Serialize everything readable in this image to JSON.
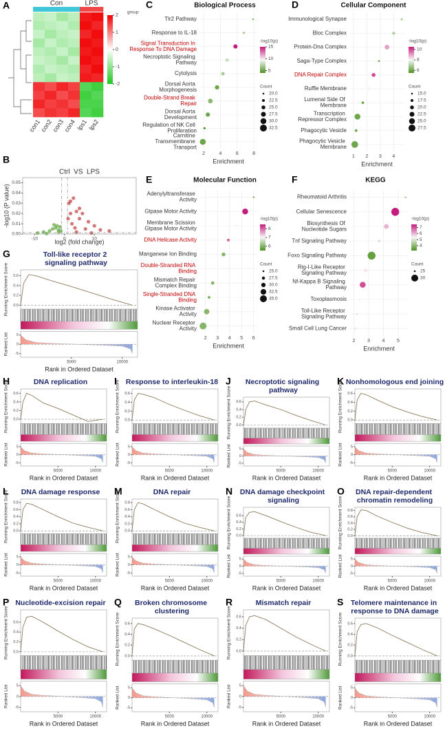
{
  "chart_data": [
    {
      "type": "heatmap",
      "panel": "A",
      "groups": [
        "Con",
        "LPS"
      ],
      "group_colors": [
        "#40c8d8",
        "#f04848"
      ],
      "columns": [
        "con1",
        "con2",
        "con3",
        "con4",
        "lps1",
        "lps2"
      ],
      "column_groups": [
        0,
        0,
        0,
        0,
        1,
        1
      ],
      "legend_title": "group",
      "clim": [
        -2,
        2
      ],
      "colorbar_ticks": [
        2,
        1,
        0,
        -1,
        -2
      ],
      "colors": [
        "#1ec81e",
        "#ffffff",
        "#f00000"
      ],
      "values": [
        [
          -0.6,
          -0.5,
          -0.8,
          -0.6,
          1.8,
          1.9
        ],
        [
          -0.7,
          -0.6,
          -0.5,
          -0.7,
          1.9,
          1.7
        ],
        [
          -0.5,
          -0.8,
          -0.6,
          -0.5,
          1.7,
          1.9
        ],
        [
          -0.8,
          -0.5,
          -0.7,
          -0.6,
          1.9,
          1.8
        ],
        [
          -0.6,
          -0.7,
          -0.5,
          -0.8,
          1.8,
          1.9
        ],
        [
          -0.5,
          -0.6,
          -0.8,
          -0.5,
          1.9,
          1.8
        ],
        [
          -0.7,
          -0.5,
          -0.6,
          -0.7,
          1.7,
          1.9
        ],
        [
          -0.6,
          -0.8,
          -0.5,
          -0.6,
          1.8,
          1.7
        ],
        [
          1.6,
          1.4,
          1.7,
          1.5,
          -1.5,
          -1.7
        ],
        [
          1.5,
          1.7,
          1.4,
          1.6,
          -1.7,
          -1.5
        ],
        [
          1.7,
          1.5,
          1.6,
          1.4,
          -1.6,
          -1.6
        ],
        [
          1.4,
          1.6,
          1.5,
          1.7,
          -1.5,
          -1.7
        ]
      ]
    },
    {
      "type": "scatter",
      "panel": "B",
      "title": "Ctrl  VS  LPS",
      "xlabel": "log2 (fold change)",
      "ylabel": "-log10 (P value)",
      "xlim": [
        -14,
        24
      ],
      "ylim": [
        0,
        0.055
      ],
      "xticks": [
        -10,
        0,
        10
      ],
      "yticks": [
        {
          "value": 0,
          "label": "0.00"
        },
        0.01,
        0.02,
        0.03,
        0.04,
        0.05
      ],
      "threshold_x": [
        -1,
        1
      ],
      "threshold_y": 0.0013,
      "series": [
        {
          "color": "#6aaa48",
          "x": [
            -9,
            -7,
            -5,
            -4,
            -3,
            -2.5,
            -2,
            -1.5,
            -6,
            -3.5,
            -2,
            -1.2
          ],
          "values": [
            0.001,
            0.002,
            0.003,
            0.005,
            0.006,
            0.008,
            0.004,
            0.007,
            0.0005,
            0.009,
            0.002,
            0.003
          ]
        },
        {
          "color": "#c44a4a",
          "x": [
            1.5,
            2,
            3,
            4,
            5,
            6,
            8,
            10,
            12,
            15,
            2.5,
            3.5,
            5,
            7,
            4,
            9,
            1.2,
            2
          ],
          "values": [
            0.03,
            0.02,
            0.035,
            0.022,
            0.015,
            0.02,
            0.012,
            0.008,
            0.004,
            0.003,
            0.01,
            0.006,
            0.025,
            0.005,
            0.002,
            0.001,
            0.015,
            0.032
          ]
        }
      ]
    },
    {
      "type": "dot",
      "panel": "C",
      "title": "Biological Process",
      "xlabel": "Enrichment",
      "categories": [
        "Tlr2 Pathway",
        "Response to IL-18",
        "Signal Transduction In Response To DNA Damage",
        "Necroptotic Signaling Pathway",
        "Cytolysis",
        "Dorsal Aorta Morphogenesis",
        "Double-Strand Break Repair",
        "Dorsal Aorta Development",
        "Regulation of NK Cell Proliferation",
        "Carnitine Transmembrane Transport"
      ],
      "label_colors": [
        "#333333",
        "#333333",
        "#c00000",
        "#333333",
        "#333333",
        "#333333",
        "#c00000",
        "#333333",
        "#333333",
        "#333333"
      ],
      "values": [
        7.9,
        6.8,
        5.8,
        4.8,
        4.3,
        3.6,
        2.8,
        2.5,
        2.1,
        1.9
      ],
      "counts": [
        20,
        21,
        26,
        24,
        24,
        26,
        27,
        26,
        21,
        30
      ],
      "p": [
        6,
        7,
        15,
        8,
        7,
        5,
        6,
        5,
        4,
        5
      ],
      "xlim": [
        1.5,
        8.4
      ],
      "xticks": [
        2,
        4,
        6,
        8
      ],
      "clim": [
        4,
        15
      ],
      "colorbar_ticks": [
        15,
        10,
        5
      ],
      "colors": [
        "#4d9221",
        "#f7f7f7",
        "#c51b7d"
      ],
      "colorbar_title": "-log10(p)",
      "size_title": "Count",
      "size_ticks": [
        {
          "value": 20,
          "label": "20.0"
        },
        22.5,
        {
          "value": 25,
          "label": "25.0"
        },
        27.5,
        {
          "value": 30,
          "label": "30.0"
        },
        32.5
      ]
    },
    {
      "type": "dot",
      "panel": "D",
      "title": "Cellular Component",
      "xlabel": "Enrichment",
      "categories": [
        "Immunological Synapse",
        "Bloc Complex",
        "Protein-Dna Complex",
        "Saga-Type Complex",
        "DNA Repair Complex",
        "Ruffle Membrane",
        "Lumenal Side Of Membrane",
        "Transcription Repressor Complex",
        "Phagocytic Vesicle",
        "Phagocytic Vesicle Membrane"
      ],
      "label_colors": [
        "#333333",
        "#333333",
        "#333333",
        "#333333",
        "#c00000",
        "#333333",
        "#333333",
        "#333333",
        "#333333",
        "#333333"
      ],
      "values": [
        4.6,
        4.0,
        3.5,
        2.9,
        2.5,
        2.1,
        1.7,
        1.3,
        1.2,
        1.1
      ],
      "counts": [
        16,
        18,
        22,
        15,
        20,
        21,
        17,
        25,
        17,
        27
      ],
      "p": [
        7,
        7,
        9,
        6,
        10,
        8,
        6,
        6,
        6,
        6
      ],
      "xlim": [
        0.7,
        4.8
      ],
      "xticks": [
        1,
        2,
        3,
        4
      ],
      "clim": [
        5.5,
        10.5
      ],
      "colorbar_ticks": [
        10,
        8,
        6
      ],
      "colors": [
        "#4d9221",
        "#f7f7f7",
        "#c51b7d"
      ],
      "colorbar_title": "-log10(p)",
      "size_title": "Count",
      "size_ticks": [
        {
          "value": 15,
          "label": "15.0"
        },
        17.5,
        {
          "value": 20,
          "label": "20.0"
        },
        22.5,
        {
          "value": 25,
          "label": "25.0"
        },
        27.5
      ]
    },
    {
      "type": "dot",
      "panel": "E",
      "title": "Molecular Function",
      "xlabel": "Enrichment",
      "categories": [
        "Adenylyltransferase Activity",
        "Gtpase Motor Activity",
        "Membrane Scission Gtpase Motor Activity",
        "DNA Helicase Activity",
        "Manganese Ion Binding",
        "Double-Stranded RNA Binding",
        "Mismatch Repair Complex Binding",
        "Single-Stranded DNA Binding",
        "Kinase Activator Activity",
        "Nuclear Receptor Activity"
      ],
      "label_colors": [
        "#333333",
        "#333333",
        "#333333",
        "#c00000",
        "#333333",
        "#c00000",
        "#333333",
        "#c00000",
        "#333333",
        "#333333"
      ],
      "values": [
        6.0,
        5.3,
        4.6,
        3.9,
        3.5,
        3.0,
        2.6,
        2.3,
        2.1,
        1.8
      ],
      "counts": [
        25,
        33,
        28,
        27,
        29,
        26,
        28,
        27,
        32,
        35
      ],
      "p": [
        6,
        9,
        7,
        8,
        6,
        7,
        6,
        6,
        6,
        6
      ],
      "xlim": [
        1.5,
        6.3
      ],
      "xticks": [
        2,
        3,
        4,
        5,
        6
      ],
      "clim": [
        5.5,
        8.5
      ],
      "colorbar_ticks": [
        8,
        7,
        6
      ],
      "colors": [
        "#4d9221",
        "#f7f7f7",
        "#c51b7d"
      ],
      "colorbar_title": "-log10(p)",
      "size_title": "Count",
      "size_ticks": [
        {
          "value": 25,
          "label": "25.0"
        },
        27.5,
        {
          "value": 30,
          "label": "30.0"
        },
        32.5,
        {
          "value": 35,
          "label": "35.0"
        }
      ]
    },
    {
      "type": "dot",
      "panel": "F",
      "title": "KEGG",
      "xlabel": "Enrichment",
      "categories": [
        "Rheumatoid Arthritis",
        "Cellular Senescence",
        "Biosynthesis Of Nucleotide Sugars",
        "Tnf Signaling Pathway",
        "Foxo Signaling Pathway",
        "Rig-I-Like Receptor Signaling Pathway",
        "Nf-Kappa B Signaling Pathway",
        "Toxoplasmosis",
        "Toll-Like Receptor Signaling Pathway",
        "Small Cell Lung Cancer"
      ],
      "label_colors": [
        "#333333",
        "#333333",
        "#333333",
        "#333333",
        "#333333",
        "#333333",
        "#333333",
        "#333333",
        "#333333",
        "#333333"
      ],
      "values": [
        5.5,
        4.8,
        4.2,
        3.7,
        3.2,
        2.8,
        2.6,
        2.4,
        2.2,
        2.1
      ],
      "counts": [
        25,
        31,
        28,
        26,
        31,
        27,
        29,
        24,
        25,
        26
      ],
      "p": [
        4.5,
        7.5,
        6,
        5,
        3.5,
        5.5,
        7,
        4.5,
        5,
        5.5
      ],
      "xlim": [
        1.7,
        5.7
      ],
      "xticks": [
        2,
        3,
        4,
        5
      ],
      "clim": [
        3.2,
        7.5
      ],
      "colorbar_ticks": [
        7,
        6,
        5,
        4
      ],
      "colors": [
        "#4d9221",
        "#f7f7f7",
        "#c51b7d"
      ],
      "colorbar_title": "-log10(p)",
      "size_title": "Count",
      "size_ticks": [
        25,
        30
      ]
    },
    {
      "type": "gsea",
      "panel": "G",
      "title": "Toll-like receptor 2 signaling pathway",
      "ylim": [
        -0.08,
        0.72
      ],
      "yticks": [
        {
          "value": 0,
          "label": "0.0"
        },
        0.2,
        0.4,
        0.6
      ],
      "x": [
        0,
        300,
        800,
        1500,
        3000,
        5000,
        7000,
        9000,
        11000
      ],
      "values": [
        0,
        0.45,
        0.62,
        0.6,
        0.5,
        0.38,
        0.25,
        0.12,
        0
      ]
    },
    {
      "type": "gsea",
      "panel": "H",
      "title": "DNA replication",
      "ylim": [
        -0.1,
        0.7
      ],
      "yticks": [
        {
          "value": 0,
          "label": "0.0"
        },
        0.2,
        0.4,
        0.6
      ],
      "x": [
        0,
        300,
        800,
        1500,
        3000,
        5000,
        7000,
        9000,
        11000
      ],
      "values": [
        0,
        0.4,
        0.6,
        0.55,
        0.38,
        0.25,
        0.1,
        -0.05,
        0
      ]
    },
    {
      "type": "gsea",
      "panel": "I",
      "title": "Response to interleukin-18",
      "ylim": [
        -0.08,
        0.7
      ],
      "yticks": [
        {
          "value": 0,
          "label": "0.0"
        },
        0.2,
        0.4,
        0.6
      ],
      "x": [
        0,
        300,
        800,
        1500,
        3000,
        5000,
        7000,
        9000,
        11000
      ],
      "values": [
        0,
        0.45,
        0.6,
        0.58,
        0.5,
        0.35,
        0.22,
        0.1,
        0
      ]
    },
    {
      "type": "gsea",
      "panel": "J",
      "title": "Necroptotic signaling pathway",
      "ylim": [
        -0.08,
        0.72
      ],
      "yticks": [
        {
          "value": 0,
          "label": "0.0"
        },
        0.2,
        0.4,
        0.6
      ],
      "x": [
        0,
        300,
        800,
        1500,
        3000,
        5000,
        7000,
        9000,
        11000
      ],
      "values": [
        0,
        0.4,
        0.6,
        0.62,
        0.52,
        0.4,
        0.25,
        0.12,
        0
      ]
    },
    {
      "type": "gsea",
      "panel": "K",
      "title": "Nonhomologous end joining",
      "ylim": [
        -0.08,
        0.7
      ],
      "yticks": [
        {
          "value": 0,
          "label": "0.0"
        },
        0.2,
        0.4,
        0.6
      ],
      "x": [
        0,
        300,
        800,
        1500,
        3000,
        5000,
        7000,
        9000,
        11000
      ],
      "values": [
        0,
        0.45,
        0.6,
        0.57,
        0.45,
        0.3,
        0.18,
        0.08,
        0
      ]
    },
    {
      "type": "gsea",
      "panel": "L",
      "title": "DNA damage response",
      "ylim": [
        -0.08,
        0.9
      ],
      "yticks": [
        {
          "value": 0,
          "label": "0.0"
        },
        0.2,
        0.4,
        0.6,
        0.8
      ],
      "x": [
        0,
        300,
        800,
        1500,
        3000,
        5000,
        7000,
        9000,
        11000
      ],
      "values": [
        0,
        0.6,
        0.78,
        0.75,
        0.6,
        0.4,
        0.22,
        0.1,
        0
      ]
    },
    {
      "type": "gsea",
      "panel": "M",
      "title": "DNA repair",
      "ylim": [
        -0.08,
        0.9
      ],
      "yticks": [
        {
          "value": 0,
          "label": "0.0"
        },
        0.2,
        0.4,
        0.6,
        0.8
      ],
      "x": [
        0,
        300,
        800,
        1500,
        3000,
        5000,
        7000,
        9000,
        11000
      ],
      "values": [
        0,
        0.6,
        0.8,
        0.76,
        0.6,
        0.4,
        0.22,
        0.1,
        0
      ]
    },
    {
      "type": "gsea",
      "panel": "N",
      "title": "DNA damage checkpoint signaling",
      "ylim": [
        -0.08,
        0.85
      ],
      "yticks": [
        {
          "value": 0,
          "label": "0.0"
        },
        0.2,
        0.4,
        0.6
      ],
      "x": [
        0,
        300,
        800,
        1500,
        3000,
        5000,
        7000,
        9000,
        11000
      ],
      "values": [
        0,
        0.55,
        0.7,
        0.72,
        0.6,
        0.42,
        0.25,
        0.1,
        0
      ]
    },
    {
      "type": "gsea",
      "panel": "O",
      "title": "DNA repair-dependent chromatin remodeling",
      "ylim": [
        -0.08,
        0.9
      ],
      "yticks": [
        {
          "value": 0,
          "label": "0.0"
        },
        0.2,
        0.4,
        0.6,
        0.8
      ],
      "x": [
        0,
        300,
        800,
        1500,
        3000,
        5000,
        7000,
        9000,
        11000
      ],
      "values": [
        0,
        0.6,
        0.82,
        0.8,
        0.62,
        0.42,
        0.24,
        0.1,
        0
      ]
    },
    {
      "type": "gsea",
      "panel": "P",
      "title": "Nucleotide-excision repair",
      "ylim": [
        -0.08,
        0.85
      ],
      "yticks": [
        {
          "value": 0,
          "label": "0.0"
        },
        0.2,
        0.4,
        0.6
      ],
      "x": [
        0,
        300,
        800,
        1500,
        3000,
        5000,
        7000,
        9000,
        11000
      ],
      "values": [
        0,
        0.5,
        0.7,
        0.72,
        0.6,
        0.42,
        0.25,
        0.1,
        0
      ]
    },
    {
      "type": "gsea",
      "panel": "Q",
      "title": "Broken chromosome clustering",
      "ylim": [
        -0.08,
        0.7
      ],
      "yticks": [
        {
          "value": 0,
          "label": "0.0"
        },
        0.2,
        0.4,
        0.6
      ],
      "x": [
        0,
        300,
        800,
        1500,
        3000,
        5000,
        7000,
        9000,
        11000
      ],
      "values": [
        0,
        0.5,
        0.6,
        0.58,
        0.5,
        0.38,
        0.25,
        0.12,
        0
      ]
    },
    {
      "type": "gsea",
      "panel": "R",
      "title": "Mismatch repair",
      "ylim": [
        -0.08,
        0.72
      ],
      "yticks": [
        {
          "value": 0,
          "label": "0.0"
        },
        0.2,
        0.4,
        0.6
      ],
      "x": [
        0,
        300,
        800,
        1500,
        3000,
        5000,
        7000,
        9000,
        11000
      ],
      "values": [
        0,
        0.45,
        0.6,
        0.62,
        0.55,
        0.4,
        0.25,
        0.12,
        0
      ]
    },
    {
      "type": "gsea",
      "panel": "S",
      "title": "Telomere maintenance in response to DNA damage",
      "ylim": [
        -0.08,
        0.7
      ],
      "yticks": [
        {
          "value": 0,
          "label": "0.0"
        },
        0.2,
        0.4,
        0.6
      ],
      "x": [
        0,
        300,
        800,
        1500,
        3000,
        5000,
        7000,
        9000,
        11000
      ],
      "values": [
        0,
        0.45,
        0.58,
        0.6,
        0.52,
        0.38,
        0.25,
        0.12,
        0
      ]
    }
  ],
  "gsea_common": {
    "ylabel": "Running Enrichment Score",
    "ranked_label": "Ranked List",
    "xlabel": "Rank in Ordered Dataset",
    "xlim": [
      0,
      11500
    ],
    "xticks": [
      5000,
      10000
    ],
    "line_color": "#8c7a5a",
    "title_color": "#1f2a6b",
    "ranked_x": [
      0,
      500,
      1500,
      3000,
      5500,
      8000,
      10000,
      10800,
      11000
    ],
    "ranked_values": [
      5,
      2.5,
      1,
      0.5,
      0,
      -0.5,
      -1,
      -2.5,
      -5
    ],
    "ranked_ylim": [
      -7,
      7
    ],
    "ranked_yticks": [
      -5,
      0,
      5
    ]
  }
}
